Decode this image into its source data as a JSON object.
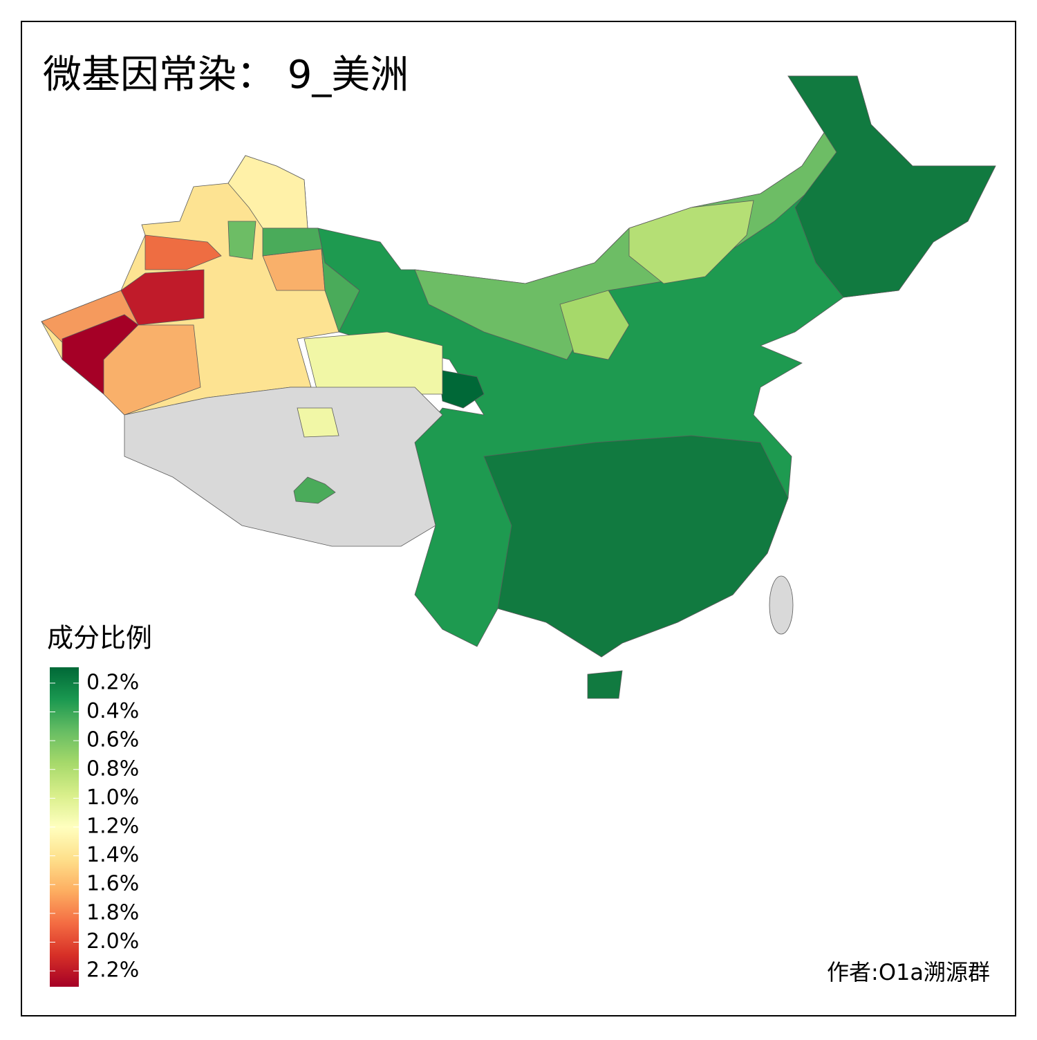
{
  "title": "微基因常染： 9_美洲",
  "legend": {
    "title": "成分比例",
    "range": [
      0.09,
      2.31
    ],
    "colors": [
      "#006837",
      "#1a9850",
      "#66bd63",
      "#a6d96a",
      "#d9ef8b",
      "#ffffbf",
      "#fee08b",
      "#fdae61",
      "#f46d43",
      "#d73027",
      "#a50026"
    ],
    "ticks": [
      {
        "value": 0.2,
        "label": "0.2%"
      },
      {
        "value": 0.4,
        "label": "0.4%"
      },
      {
        "value": 0.6,
        "label": "0.6%"
      },
      {
        "value": 0.8,
        "label": "0.8%"
      },
      {
        "value": 1.0,
        "label": "1.0%"
      },
      {
        "value": 1.2,
        "label": "1.2%"
      },
      {
        "value": 1.4,
        "label": "1.4%"
      },
      {
        "value": 1.6,
        "label": "1.6%"
      },
      {
        "value": 1.8,
        "label": "1.8%"
      },
      {
        "value": 2.0,
        "label": "2.0%"
      },
      {
        "value": 2.2,
        "label": "2.2%"
      }
    ]
  },
  "author": "作者:O1a溯源群"
}
